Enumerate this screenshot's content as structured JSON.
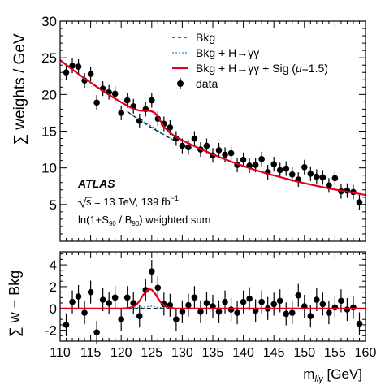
{
  "chart_data": [
    {
      "type": "scatter",
      "panel": "upper",
      "ylabel": "∑ weights / GeV",
      "xlim": [
        110,
        160
      ],
      "ylim": [
        0,
        30
      ],
      "yticks": [
        5,
        10,
        15,
        20,
        25,
        30
      ],
      "grid": false,
      "legend_position": "top-right",
      "legend": {
        "bkg": "Bkg",
        "bkg_higgs_prefix": "Bkg + H",
        "bkg_higgs_suffix": "γγ",
        "full_prefix": "Bkg + H",
        "full_middle": "γγ + Sig (",
        "full_mu": "μ",
        "full_suffix": "=1.5)",
        "data": "data"
      },
      "annotations": {
        "experiment": "ATLAS",
        "energy_prefix": "s = 13 TeV, 139 fb",
        "energy_exp": "−1",
        "weighting_prefix": "ln(1+S",
        "weighting_sub1": "90",
        "weighting_mid": " / B",
        "weighting_sub2": "90",
        "weighting_suffix": ") weighted sum"
      },
      "series": [
        {
          "name": "data",
          "style": "markers-with-errorbars",
          "color": "#000000",
          "x": [
            111,
            112,
            113,
            114,
            115,
            116,
            117,
            118,
            119,
            120,
            121,
            122,
            123,
            124,
            125,
            126,
            127,
            128,
            129,
            130,
            131,
            132,
            133,
            134,
            135,
            136,
            137,
            138,
            139,
            140,
            141,
            142,
            143,
            144,
            145,
            146,
            147,
            148,
            149,
            150,
            151,
            152,
            153,
            154,
            155,
            156,
            157,
            158,
            159
          ],
          "y": [
            23.0,
            23.9,
            23.8,
            21.9,
            22.8,
            18.9,
            20.8,
            20.3,
            20.1,
            17.5,
            19.2,
            18.4,
            16.4,
            18.0,
            19.2,
            16.7,
            16.0,
            15.5,
            14.0,
            13.0,
            12.8,
            14.0,
            12.5,
            13.0,
            11.7,
            12.4,
            11.8,
            12.0,
            10.4,
            11.1,
            10.3,
            10.4,
            11.2,
            9.4,
            10.5,
            9.7,
            9.9,
            9.1,
            8.4,
            10.1,
            9.2,
            8.8,
            8.7,
            7.6,
            8.6,
            6.8,
            6.9,
            6.7,
            5.3
          ],
          "yerr": 1.0
        },
        {
          "name": "Bkg",
          "style": "dashed",
          "color": "#000000",
          "x": [
            121,
            123,
            125,
            127,
            129
          ],
          "y": [
            17.68,
            16.52,
            15.46,
            14.49,
            13.59
          ]
        },
        {
          "name": "Bkg + H→γγ",
          "style": "dotted",
          "color": "#1e8cd2",
          "x": [
            121,
            123,
            125,
            127,
            129
          ],
          "y": [
            17.68,
            16.58,
            15.68,
            14.55,
            13.6
          ]
        },
        {
          "name": "Bkg + H→γγ + Sig (μ=1.5)",
          "style": "solid",
          "color": "#e0001b",
          "x": [
            110,
            112,
            114,
            116,
            118,
            120,
            121,
            122,
            123,
            123.5,
            124,
            124.5,
            125,
            125.5,
            126,
            126.5,
            127,
            128,
            129,
            130,
            132,
            134,
            136,
            138,
            140,
            142,
            144,
            146,
            148,
            150,
            152,
            154,
            156,
            158,
            160
          ],
          "y": [
            24.7,
            23.4,
            22.2,
            21.05,
            19.95,
            18.95,
            18.48,
            18.03,
            17.8,
            17.78,
            17.8,
            17.78,
            17.7,
            17.5,
            17.0,
            16.3,
            15.6,
            14.75,
            14.2,
            13.75,
            12.95,
            12.2,
            11.5,
            10.85,
            10.25,
            9.7,
            9.2,
            8.75,
            8.3,
            7.9,
            7.55,
            7.2,
            6.9,
            6.6,
            6.3
          ]
        }
      ]
    },
    {
      "type": "scatter",
      "panel": "lower",
      "ylabel": "∑ w − Bkg",
      "xlabel_main": "m",
      "xlabel_sub": "llγ",
      "xlabel_unit": " [GeV]",
      "xlim": [
        110,
        160
      ],
      "ylim": [
        -3,
        5.2
      ],
      "yticks": [
        -2,
        0,
        2,
        4
      ],
      "xticks": [
        110,
        115,
        120,
        125,
        130,
        135,
        140,
        145,
        150,
        155,
        160
      ],
      "grid": false,
      "series": [
        {
          "name": "data",
          "style": "markers-with-errorbars",
          "color": "#000000",
          "x": [
            111,
            112,
            113,
            114,
            115,
            116,
            117,
            118,
            119,
            120,
            121,
            122,
            123,
            124,
            125,
            126,
            127,
            128,
            129,
            130,
            131,
            132,
            133,
            134,
            135,
            136,
            137,
            138,
            139,
            140,
            141,
            142,
            143,
            144,
            145,
            146,
            147,
            148,
            149,
            150,
            151,
            152,
            153,
            154,
            155,
            156,
            157,
            158,
            159
          ],
          "y": [
            -1.5,
            0.6,
            1.1,
            -0.4,
            1.5,
            -2.2,
            0.8,
            0.5,
            1.0,
            -1.0,
            1.0,
            0.5,
            -0.7,
            1.7,
            3.4,
            1.9,
            0.4,
            0.3,
            -1.0,
            -0.3,
            0.3,
            1.0,
            -0.3,
            0.5,
            0.2,
            -0.3,
            0.6,
            -0.1,
            -0.4,
            0.6,
            0.9,
            -0.2,
            0.6,
            0.0,
            0.4,
            0.7,
            -0.5,
            -0.4,
            1.2,
            0.2,
            -0.7,
            0.8,
            0.4,
            -0.4,
            0.1,
            0.7,
            -0.1,
            0.1,
            -1.4
          ],
          "yerr": 1.05
        },
        {
          "name": "Bkg",
          "style": "dashed",
          "color": "#000000",
          "x": [
            121,
            129
          ],
          "y": [
            0,
            0
          ]
        },
        {
          "name": "Bkg + H→γγ",
          "style": "dotted",
          "color": "#1e8cd2",
          "x": [
            120,
            122,
            124,
            125,
            126,
            128,
            130
          ],
          "y": [
            0,
            0.02,
            0.15,
            0.22,
            0.1,
            0.01,
            0
          ]
        },
        {
          "name": "Bkg + H→γγ + Sig (μ=1.5)",
          "style": "solid",
          "color": "#e0001b",
          "x": [
            110,
            120,
            121,
            122,
            122.5,
            123,
            123.5,
            124,
            124.5,
            125,
            125.5,
            126,
            126.5,
            127,
            127.5,
            128,
            129,
            160
          ],
          "y": [
            0,
            0,
            0.03,
            0.15,
            0.35,
            0.7,
            1.15,
            1.55,
            1.78,
            1.72,
            1.4,
            0.95,
            0.55,
            0.28,
            0.12,
            0.05,
            0,
            0
          ]
        }
      ]
    }
  ]
}
